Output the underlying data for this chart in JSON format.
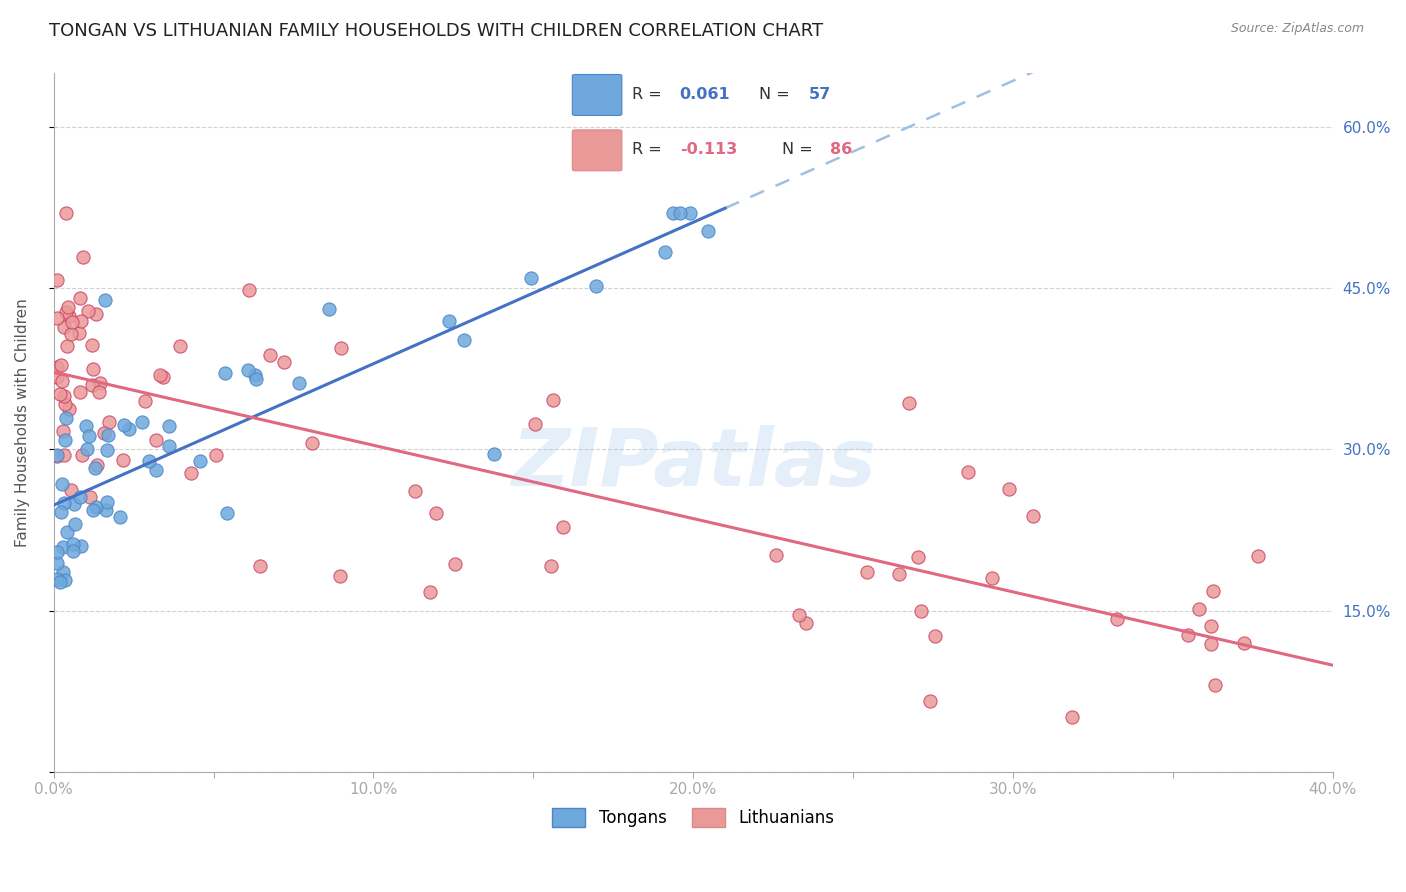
{
  "title": "TONGAN VS LITHUANIAN FAMILY HOUSEHOLDS WITH CHILDREN CORRELATION CHART",
  "source": "Source: ZipAtlas.com",
  "ylabel": "Family Households with Children",
  "xlim": [
    0.0,
    0.4
  ],
  "ylim": [
    0.0,
    0.65
  ],
  "tongan_R": 0.061,
  "tongan_N": 57,
  "lithuanian_R": -0.113,
  "lithuanian_N": 86,
  "tongan_color": "#6fa8dc",
  "tongan_color_dark": "#4a86c8",
  "lithuanian_color": "#ea9999",
  "lithuanian_color_dark": "#cc4466",
  "trend_tongan_solid_color": "#4472c4",
  "trend_tongan_dashed_color": "#a0c0e0",
  "trend_lithuanian_color": "#e06880",
  "background_color": "#ffffff",
  "grid_color": "#cccccc",
  "title_fontsize": 13,
  "axis_label_fontsize": 11,
  "tick_label_fontsize": 11,
  "legend_fontsize": 12,
  "watermark": "ZIPatlas",
  "y_tick_vals": [
    0.0,
    0.15,
    0.3,
    0.45,
    0.6
  ],
  "y_tick_labels": [
    "",
    "15.0%",
    "30.0%",
    "45.0%",
    "60.0%"
  ],
  "x_tick_vals": [
    0.0,
    0.05,
    0.1,
    0.15,
    0.2,
    0.25,
    0.3,
    0.35,
    0.4
  ],
  "x_tick_labels": [
    "0.0%",
    "",
    "10.0%",
    "",
    "20.0%",
    "",
    "30.0%",
    "",
    "40.0%"
  ]
}
